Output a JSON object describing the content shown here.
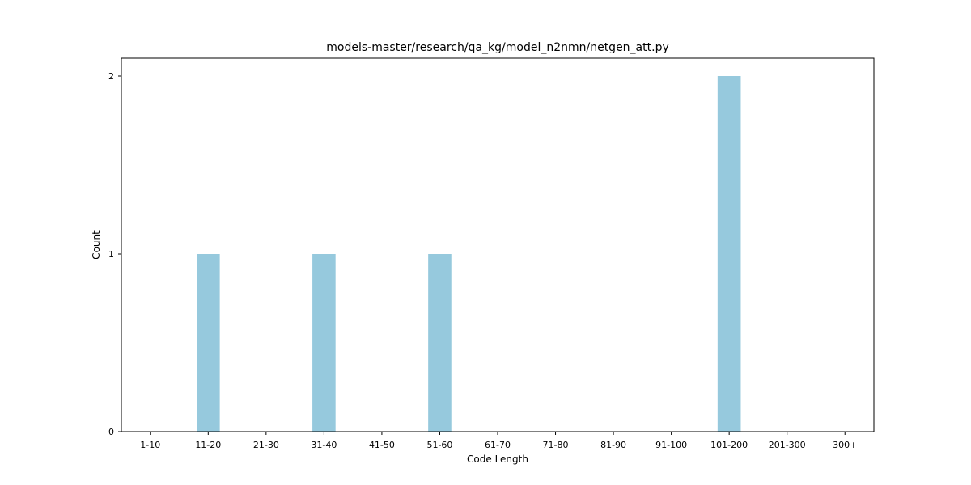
{
  "chart_data": {
    "type": "bar",
    "title": "models-master/research/qa_kg/model_n2nmn/netgen_att.py",
    "xlabel": "Code Length",
    "ylabel": "Count",
    "categories": [
      "1-10",
      "11-20",
      "21-30",
      "31-40",
      "41-50",
      "51-60",
      "61-70",
      "71-80",
      "81-90",
      "91-100",
      "101-200",
      "201-300",
      "300+"
    ],
    "values": [
      0,
      1,
      0,
      1,
      0,
      1,
      0,
      0,
      0,
      0,
      2,
      0,
      0
    ],
    "ylim": [
      0,
      2.1
    ],
    "yticks": [
      0,
      1,
      2
    ],
    "bar_color": "#96c9dd",
    "grid": false
  }
}
